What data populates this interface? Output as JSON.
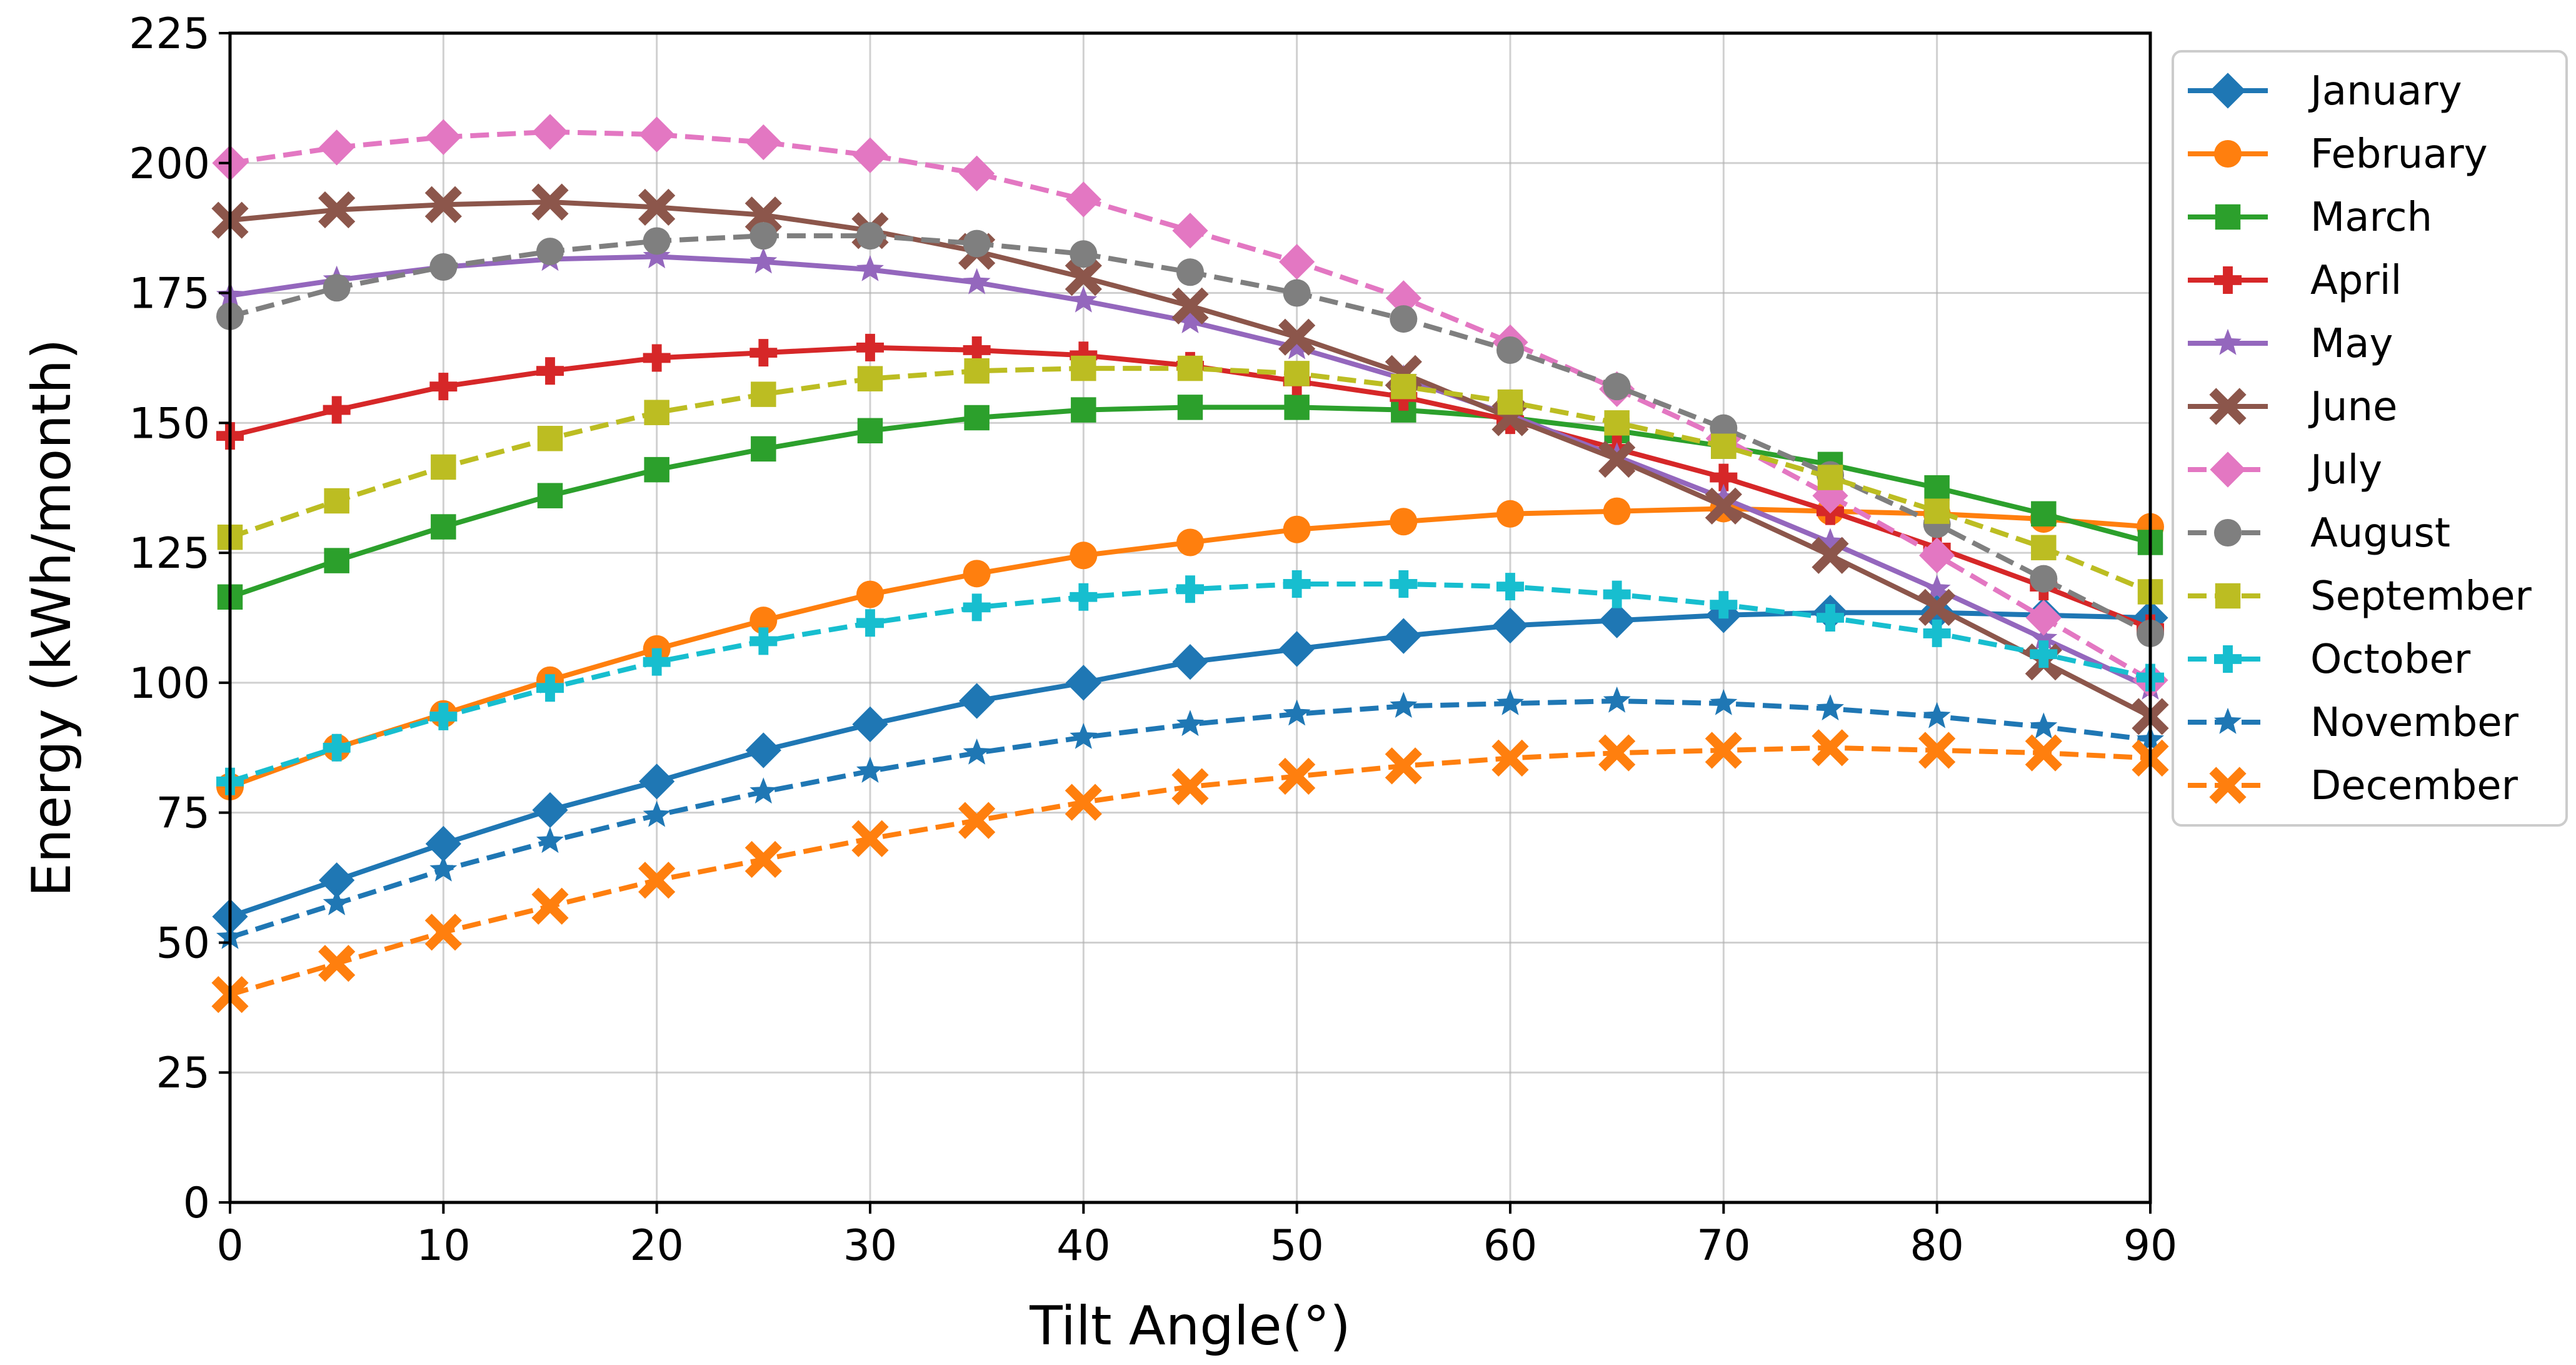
{
  "chart_data": {
    "type": "line",
    "title": "",
    "xlabel": "Tilt Angle(°)",
    "ylabel": "Energy (kWh/month)",
    "xlim": [
      0,
      90
    ],
    "ylim": [
      0,
      225
    ],
    "xticks": [
      0,
      10,
      20,
      30,
      40,
      50,
      60,
      70,
      80,
      90
    ],
    "yticks": [
      0,
      25,
      50,
      75,
      100,
      125,
      150,
      175,
      200,
      225
    ],
    "grid": true,
    "legend_position": "outside-right-top",
    "x": [
      0,
      5,
      10,
      15,
      20,
      25,
      30,
      35,
      40,
      45,
      50,
      55,
      60,
      65,
      70,
      75,
      80,
      85,
      90
    ],
    "series": [
      {
        "name": "January",
        "color": "#1f77b4",
        "dash": "solid",
        "marker": "diamond",
        "values": [
          55,
          62,
          69,
          75.5,
          81,
          87,
          92,
          96.5,
          100,
          104,
          106.5,
          109,
          111,
          112,
          113,
          113.5,
          113.5,
          113,
          112.5
        ]
      },
      {
        "name": "February",
        "color": "#ff7f0e",
        "dash": "solid",
        "marker": "circle",
        "values": [
          80,
          87.5,
          94,
          100.5,
          106.5,
          112,
          117,
          121,
          124.5,
          127,
          129.5,
          131,
          132.5,
          133,
          133.5,
          133,
          132.5,
          131.5,
          130
        ]
      },
      {
        "name": "March",
        "color": "#2ca02c",
        "dash": "solid",
        "marker": "square",
        "values": [
          116.5,
          123.5,
          130,
          136,
          141,
          145,
          148.5,
          151,
          152.5,
          153,
          153,
          152.5,
          151,
          148.5,
          145.5,
          142,
          137.5,
          132.5,
          127
        ]
      },
      {
        "name": "April",
        "color": "#d62728",
        "dash": "solid",
        "marker": "plus",
        "values": [
          147.5,
          152.5,
          157,
          160,
          162.5,
          163.5,
          164.5,
          164,
          163,
          161,
          158,
          155,
          150.5,
          145,
          139.5,
          133,
          126,
          118.5,
          110.5
        ]
      },
      {
        "name": "May",
        "color": "#9467bd",
        "dash": "solid",
        "marker": "star",
        "values": [
          174.5,
          177.5,
          180,
          181.5,
          182,
          181,
          179.5,
          177,
          173.5,
          169.5,
          164.5,
          158.5,
          151.5,
          143.5,
          135.5,
          127,
          118,
          108.5,
          99
        ]
      },
      {
        "name": "June",
        "color": "#8c564b",
        "dash": "solid",
        "marker": "x",
        "values": [
          189,
          191,
          192,
          192.5,
          191.5,
          190,
          187,
          183,
          178,
          172.5,
          166.5,
          159.5,
          151,
          143,
          134,
          124.5,
          114.5,
          104,
          93.5
        ]
      },
      {
        "name": "July",
        "color": "#e377c2",
        "dash": "dashed",
        "marker": "diamond",
        "values": [
          200,
          203,
          205,
          206,
          205.5,
          204,
          201.5,
          198,
          193,
          187,
          181,
          174,
          165.5,
          156.5,
          147,
          136,
          124.5,
          112.5,
          100.5
        ]
      },
      {
        "name": "August",
        "color": "#7f7f7f",
        "dash": "dashed",
        "marker": "circle",
        "values": [
          170.5,
          176,
          180,
          183,
          185,
          186,
          186,
          184.5,
          182.5,
          179,
          175,
          170,
          164,
          157,
          149,
          140,
          130.5,
          120,
          109.5
        ]
      },
      {
        "name": "September",
        "color": "#bcbd22",
        "dash": "dashed",
        "marker": "square",
        "values": [
          128,
          135,
          141.5,
          147,
          152,
          155.5,
          158.5,
          160,
          160.5,
          160.5,
          159.5,
          157,
          154,
          150,
          145.5,
          139.5,
          133,
          126,
          117.5
        ]
      },
      {
        "name": "October",
        "color": "#17becf",
        "dash": "dashed",
        "marker": "plus",
        "values": [
          81,
          87.5,
          93.5,
          99,
          104,
          108,
          111.5,
          114.5,
          116.5,
          118,
          119,
          119,
          118.5,
          117,
          115,
          112.5,
          109.5,
          105.5,
          101
        ]
      },
      {
        "name": "November",
        "color": "#1f77b4",
        "dash": "dashed",
        "marker": "star",
        "values": [
          51,
          57.5,
          64,
          69.5,
          74.5,
          79,
          83,
          86.5,
          89.5,
          92,
          94,
          95.5,
          96,
          96.5,
          96,
          95,
          93.5,
          91.5,
          89
        ]
      },
      {
        "name": "December",
        "color": "#ff7f0e",
        "dash": "dashed",
        "marker": "x",
        "values": [
          40,
          46,
          52,
          57,
          62,
          66,
          70,
          73.5,
          77,
          80,
          82,
          84,
          85.5,
          86.5,
          87,
          87.5,
          87,
          86.5,
          85.5
        ]
      }
    ]
  }
}
